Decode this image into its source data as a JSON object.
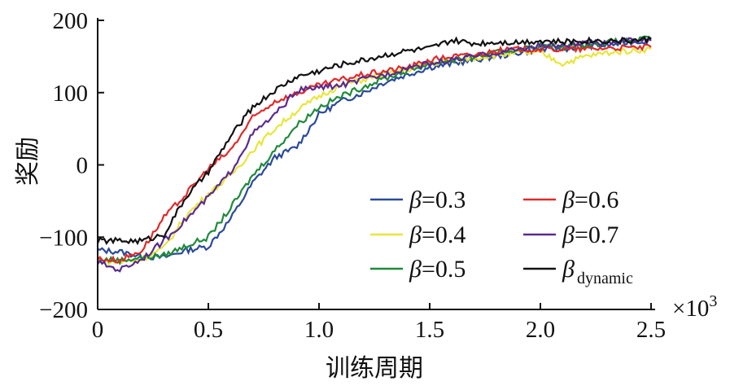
{
  "chart_data": {
    "type": "line",
    "xlabel": "训练周期",
    "ylabel": "奖励",
    "x_multiplier": "×10",
    "x_multiplier_exp": "3",
    "xlim": [
      0,
      2.5
    ],
    "ylim": [
      -200,
      200
    ],
    "xticks": [
      "0",
      "0.5",
      "1.0",
      "1.5",
      "2.0",
      "2.5"
    ],
    "xtick_values": [
      0,
      0.5,
      1.0,
      1.5,
      2.0,
      2.5
    ],
    "yticks": [
      "200",
      "100",
      "0",
      "−100",
      "−200"
    ],
    "ytick_values": [
      200,
      100,
      0,
      -100,
      -200
    ],
    "legend_position": "lower-right",
    "x": [
      0,
      0.1,
      0.2,
      0.3,
      0.4,
      0.5,
      0.6,
      0.7,
      0.8,
      0.9,
      1.0,
      1.1,
      1.2,
      1.3,
      1.4,
      1.5,
      1.6,
      1.7,
      1.8,
      1.9,
      2.0,
      2.1,
      2.2,
      2.3,
      2.4,
      2.5
    ],
    "series": [
      {
        "name": "β=0.3",
        "symbol": "β",
        "label": "=0.3",
        "color": "#2a4a9a",
        "values": [
          -118,
          -120,
          -127,
          -128,
          -118,
          -113,
          -75,
          -25,
          10,
          25,
          70,
          88,
          100,
          115,
          125,
          135,
          140,
          145,
          150,
          155,
          160,
          160,
          165,
          165,
          170,
          172
        ]
      },
      {
        "name": "β=0.4",
        "symbol": "β",
        "label": "=0.4",
        "color": "#e8e63a",
        "values": [
          -133,
          -135,
          -130,
          -115,
          -70,
          -40,
          -15,
          20,
          50,
          75,
          95,
          110,
          118,
          125,
          132,
          140,
          145,
          148,
          152,
          155,
          155,
          140,
          150,
          155,
          158,
          160
        ]
      },
      {
        "name": "β=0.5",
        "symbol": "β",
        "label": "=0.5",
        "color": "#1f8a3a",
        "values": [
          -130,
          -132,
          -128,
          -125,
          -112,
          -100,
          -60,
          -15,
          20,
          55,
          80,
          95,
          108,
          120,
          130,
          140,
          145,
          150,
          155,
          160,
          165,
          163,
          165,
          170,
          172,
          175
        ]
      },
      {
        "name": "β=0.6",
        "symbol": "β",
        "label": "=0.6",
        "color": "#e02a2a",
        "values": [
          -130,
          -132,
          -118,
          -73,
          -40,
          -5,
          20,
          65,
          88,
          99,
          110,
          118,
          125,
          130,
          135,
          145,
          150,
          152,
          158,
          160,
          160,
          160,
          160,
          162,
          162,
          163
        ]
      },
      {
        "name": "β=0.7",
        "symbol": "β",
        "label": "=0.7",
        "color": "#5a2a90",
        "values": [
          -135,
          -145,
          -130,
          -105,
          -75,
          -45,
          -10,
          43,
          69,
          103,
          107,
          110,
          118,
          125,
          135,
          140,
          145,
          150,
          155,
          160,
          165,
          165,
          168,
          170,
          172,
          172
        ]
      },
      {
        "name": "β dynamic",
        "symbol": "β",
        "label": "dynamic",
        "color": "#111111",
        "values": [
          -105,
          -105,
          -105,
          -96,
          -44,
          -10,
          39,
          80,
          103,
          122,
          130,
          139,
          145,
          152,
          158,
          161,
          172,
          168,
          170,
          170,
          172,
          170,
          172,
          172,
          172,
          174
        ]
      }
    ]
  }
}
